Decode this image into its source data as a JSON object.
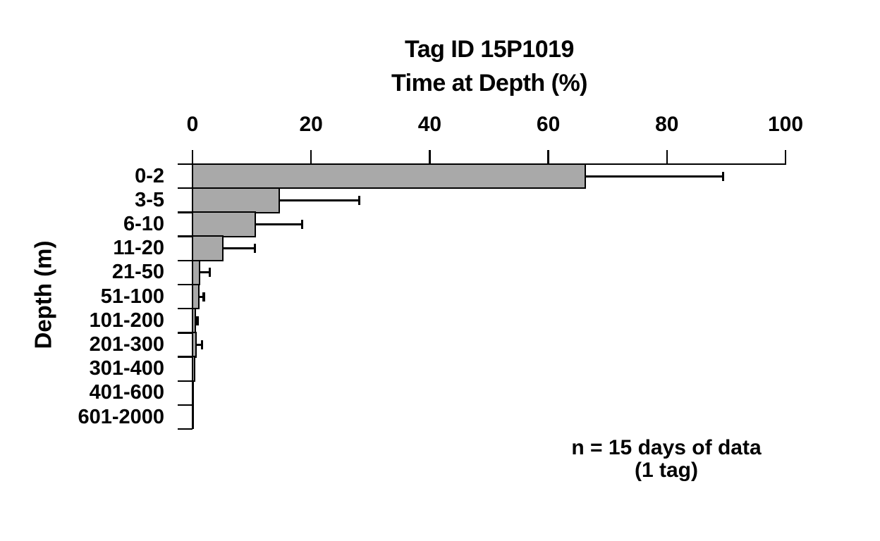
{
  "page": {
    "background": "#ffffff"
  },
  "chart_data": {
    "type": "bar",
    "orientation": "horizontal",
    "title": "Tag ID 15P1019",
    "subtitle": "Time at Depth (%)",
    "xlabel": "Time at Depth (%)",
    "ylabel": "Depth (m)",
    "categories": [
      "0-2",
      "3-5",
      "6-10",
      "11-20",
      "21-50",
      "51-100",
      "101-200",
      "201-300",
      "301-400",
      "401-600",
      "601-2000"
    ],
    "values": [
      66.2,
      14.6,
      10.5,
      5.1,
      1.2,
      1.0,
      0.45,
      0.6,
      0.3,
      0,
      0
    ],
    "error_upper": [
      89.5,
      28.1,
      18.5,
      10.5,
      2.9,
      1.9,
      0.85,
      1.6,
      null,
      null,
      null
    ],
    "xlim": [
      0,
      100
    ],
    "xticks": [
      0,
      20,
      40,
      60,
      80,
      100
    ],
    "grid": false,
    "legend": null,
    "bar_fill_color": "#a9a9a9",
    "bar_border_color": "#000000",
    "axis_color": "#000000",
    "text_color": "#000000",
    "annotation_lines": [
      "n = 15 days of data",
      "(1 tag)"
    ]
  }
}
